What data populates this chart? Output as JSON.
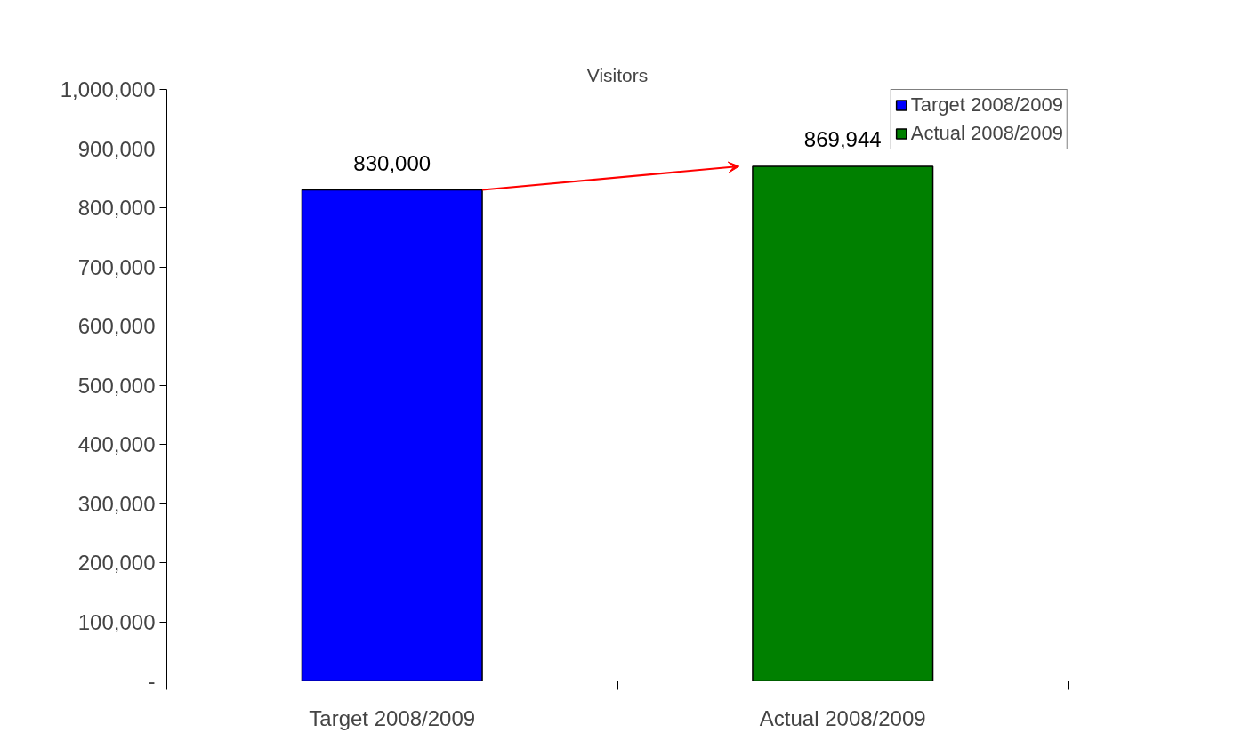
{
  "chart_data": {
    "type": "bar",
    "title": "Visitors",
    "categories": [
      "Target 2008/2009",
      "Actual 2008/2009"
    ],
    "stacked": true,
    "series": [
      {
        "name": "Target 2008/2009",
        "color": "#0000ff",
        "values": [
          830000,
          null
        ],
        "value_labels": [
          "830,000",
          null
        ]
      },
      {
        "name": "Actual 2008/2009",
        "color": "#008000",
        "values": [
          null,
          869944
        ],
        "value_labels": [
          null,
          "869,944"
        ]
      }
    ],
    "ylim": [
      0,
      1000000
    ],
    "yticks": [
      {
        "value": 0,
        "label": "-"
      },
      {
        "value": 100000,
        "label": "100,000"
      },
      {
        "value": 200000,
        "label": "200,000"
      },
      {
        "value": 300000,
        "label": "300,000"
      },
      {
        "value": 400000,
        "label": "400,000"
      },
      {
        "value": 500000,
        "label": "500,000"
      },
      {
        "value": 600000,
        "label": "600,000"
      },
      {
        "value": 700000,
        "label": "700,000"
      },
      {
        "value": 800000,
        "label": "800,000"
      },
      {
        "value": 900000,
        "label": "900,000"
      },
      {
        "value": 1000000,
        "label": "1,000,000"
      }
    ],
    "legend": "top right",
    "grid": false
  }
}
